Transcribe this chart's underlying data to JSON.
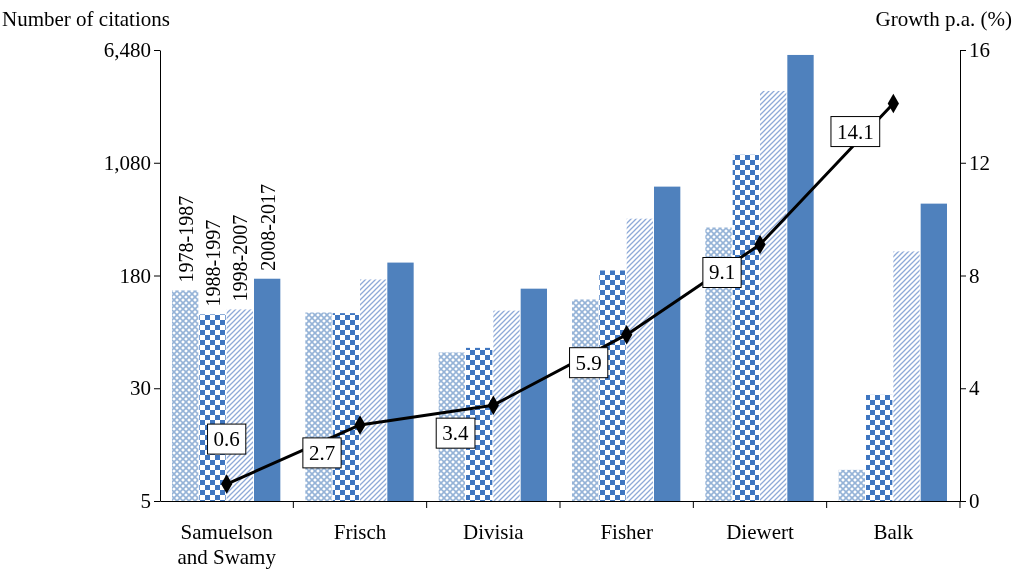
{
  "chart_data": {
    "type": "bar",
    "ylabel": "Number of citations",
    "y2label": "Growth p.a. (%)",
    "categories": [
      "Samuelson and Swamy",
      "Frisch",
      "Divisia",
      "Fisher",
      "Diewert",
      "Balk"
    ],
    "log": "y",
    "ylim": [
      5,
      6480
    ],
    "yticks": [
      5,
      30,
      180,
      {
        "value": 1080,
        "label": "1,080"
      },
      {
        "value": 6480,
        "label": "6,480"
      }
    ],
    "y2lim": [
      0,
      16
    ],
    "y2ticks": [
      0,
      4,
      8,
      12,
      16
    ],
    "grid": false,
    "series": [
      {
        "name": "1978-1987",
        "color": "#95b3d7",
        "values": [
          142,
          100,
          53,
          123,
          386,
          8.2
        ]
      },
      {
        "name": "1988-1997",
        "color": "#3f76c0",
        "values": [
          97,
          99,
          57,
          195,
          1226,
          27
        ]
      },
      {
        "name": "1998-2007",
        "color": "#8eaad8",
        "values": [
          105,
          169,
          103,
          444,
          3380,
          264
        ]
      },
      {
        "name": "2008-2017",
        "color": "#4f81bd",
        "values": [
          171,
          221,
          146,
          739,
          5990,
          564
        ]
      },
      {
        "type": "line",
        "axis": "y2",
        "color": "#000000",
        "marker": "diamond",
        "line_style": "solid",
        "values": [
          0.6,
          2.7,
          3.4,
          5.9,
          9.1,
          14.1
        ],
        "value_labels": [
          "0.6",
          "2.7",
          "3.4",
          "5.9",
          "9.1",
          "14.1"
        ]
      }
    ]
  }
}
